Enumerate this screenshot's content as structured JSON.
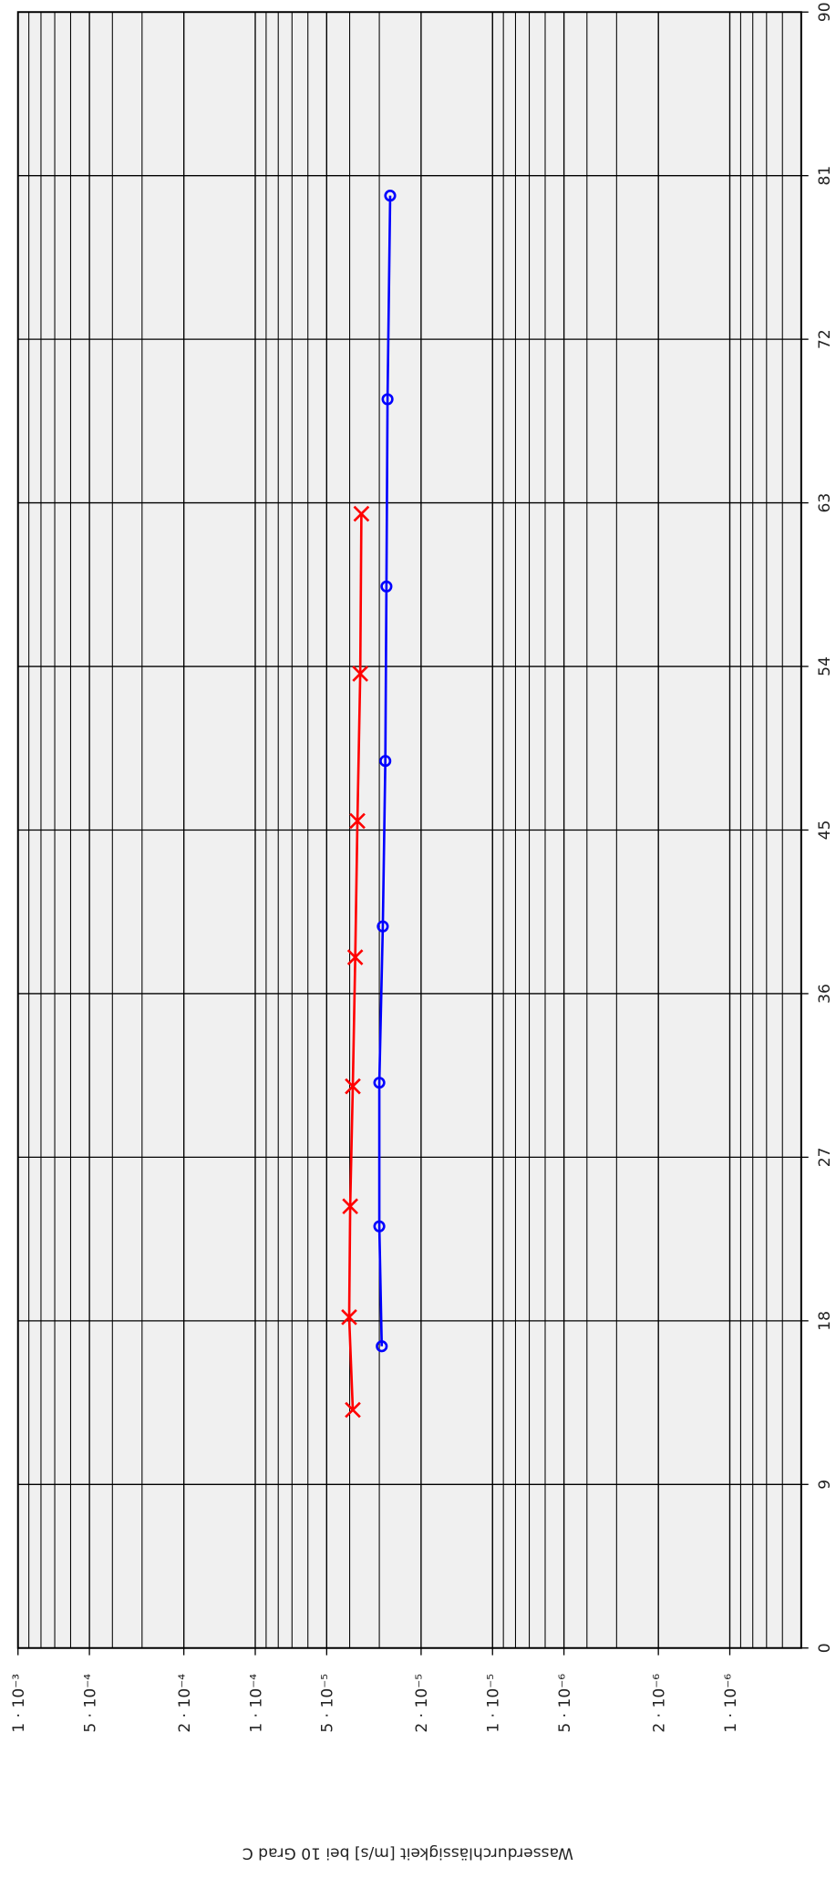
{
  "chart_data": {
    "type": "line",
    "y_label": "Wasserdurchlässigkeit [m/s] bei 10 Grad C",
    "xlim": [
      0,
      90
    ],
    "xticks": [
      0,
      9,
      18,
      27,
      36,
      45,
      54,
      63,
      72,
      81,
      90
    ],
    "ylim": [
      5e-07,
      0.001
    ],
    "log_y": true,
    "grid": true,
    "yticks": [
      {
        "value": 0.001,
        "label": "1 · 10⁻³"
      },
      {
        "value": 0.0005,
        "label": "5 · 10⁻⁴"
      },
      {
        "value": 0.0002,
        "label": "2 · 10⁻⁴"
      },
      {
        "value": 0.0001,
        "label": "1 · 10⁻⁴"
      },
      {
        "value": 5e-05,
        "label": "5 · 10⁻⁵"
      },
      {
        "value": 2e-05,
        "label": "2 · 10⁻⁵"
      },
      {
        "value": 1e-05,
        "label": "1 · 10⁻⁵"
      },
      {
        "value": 5e-06,
        "label": "5 · 10⁻⁶"
      },
      {
        "value": 2e-06,
        "label": "2 · 10⁻⁶"
      },
      {
        "value": 1e-06,
        "label": "1 · 10⁻⁶"
      }
    ],
    "series": [
      {
        "color": "#ff0000",
        "marker": "x",
        "x": [
          13.1,
          18.2,
          24.3,
          30.9,
          38.0,
          45.5,
          53.6,
          62.4
        ],
        "values": [
          3.88e-05,
          4.02e-05,
          3.98e-05,
          3.88e-05,
          3.79e-05,
          3.71e-05,
          3.61e-05,
          3.57e-05
        ]
      },
      {
        "color": "#0000ff",
        "marker": "o",
        "x": [
          16.6,
          23.2,
          31.1,
          39.7,
          48.8,
          58.4,
          68.7,
          79.9
        ],
        "values": [
          2.93e-05,
          3e-05,
          3e-05,
          2.9e-05,
          2.83e-05,
          2.8e-05,
          2.77e-05,
          2.7e-05
        ]
      }
    ]
  }
}
